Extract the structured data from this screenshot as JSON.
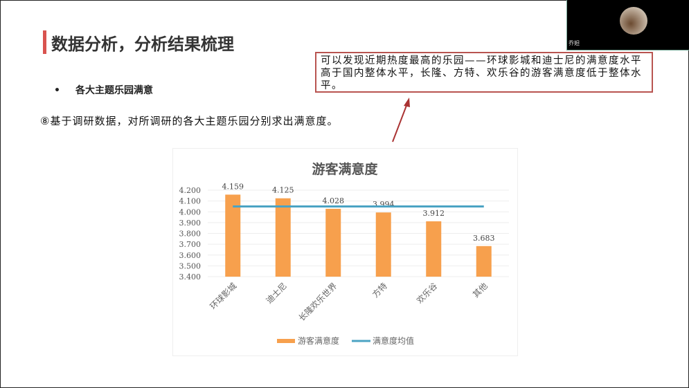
{
  "slide": {
    "title": "数据分析，分析结果梳理",
    "bullet_mark": "•",
    "bullet_text": "各大主题乐园满意",
    "description": "⑧基于调研数据，对所调研的各大主题乐园分别求出满意度。",
    "callout": "可以发现近期热度最高的乐园——环球影城和迪士尼的满意度水平高于国内整体水平，长隆、方特、欢乐谷的游客满意度低于整体水平。"
  },
  "video": {
    "name": "乔妲",
    "icon": "avatar"
  },
  "colors": {
    "bar": "#f7a04d",
    "mean_line": "#4ba3c3",
    "accent": "#d9534f"
  },
  "chart_data": {
    "type": "bar",
    "title": "游客满意度",
    "categories": [
      "环球影城",
      "迪士尼",
      "长隆欢乐世界",
      "方特",
      "欢乐谷",
      "其他"
    ],
    "series": [
      {
        "name": "游客满意度",
        "type": "bar",
        "values": [
          4.159,
          4.125,
          4.028,
          3.994,
          3.912,
          3.683
        ]
      },
      {
        "name": "满意度均值",
        "type": "line",
        "values": [
          4.05,
          4.05,
          4.05,
          4.05,
          4.05,
          4.05
        ]
      }
    ],
    "yticks": [
      "4.200",
      "4.100",
      "4.000",
      "3.900",
      "3.800",
      "3.700",
      "3.600",
      "3.500",
      "3.400"
    ],
    "ylim": [
      3.4,
      4.2
    ],
    "grid": true,
    "legend": "bottom"
  }
}
